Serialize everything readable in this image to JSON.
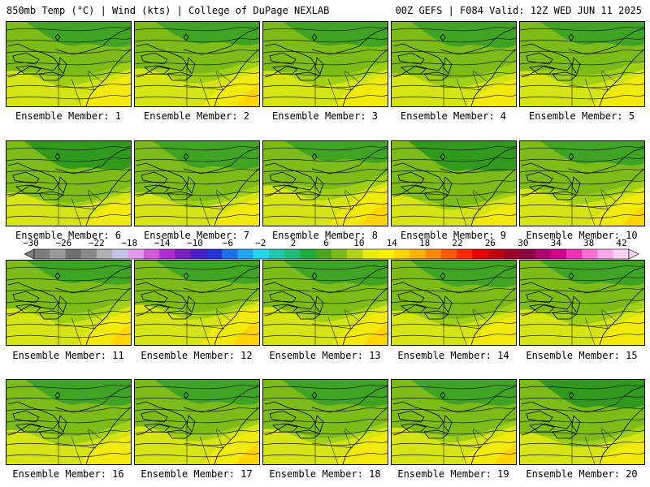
{
  "header": {
    "left": "850mb Temp (°C) | Wind (kts) | College of DuPage NEXLAB",
    "right": "00Z GEFS | F084 Valid: 12Z WED JUN 11 2025"
  },
  "panel_label_prefix": "Ensemble Member:",
  "members": [
    {
      "n": "1",
      "tone": 1.0,
      "warm": 0.3
    },
    {
      "n": "2",
      "tone": 0.8,
      "warm": 0.4
    },
    {
      "n": "3",
      "tone": 1.0,
      "warm": 0.3
    },
    {
      "n": "4",
      "tone": 1.1,
      "warm": 0.2
    },
    {
      "n": "5",
      "tone": 0.9,
      "warm": 0.3
    },
    {
      "n": "6",
      "tone": 1.4,
      "warm": 0.2
    },
    {
      "n": "7",
      "tone": 1.3,
      "warm": 0.2
    },
    {
      "n": "8",
      "tone": 0.6,
      "warm": 0.5
    },
    {
      "n": "9",
      "tone": 1.6,
      "warm": 0.1
    },
    {
      "n": "10",
      "tone": 0.9,
      "warm": 0.35
    },
    {
      "n": "11",
      "tone": 0.9,
      "warm": 0.35
    },
    {
      "n": "12",
      "tone": 0.8,
      "warm": 0.5
    },
    {
      "n": "13",
      "tone": 1.0,
      "warm": 0.4
    },
    {
      "n": "14",
      "tone": 1.2,
      "warm": 0.25
    },
    {
      "n": "15",
      "tone": 1.0,
      "warm": 0.3
    },
    {
      "n": "16",
      "tone": 1.1,
      "warm": 0.25
    },
    {
      "n": "17",
      "tone": 1.0,
      "warm": 0.4
    },
    {
      "n": "18",
      "tone": 1.2,
      "warm": 0.3
    },
    {
      "n": "19",
      "tone": 1.1,
      "warm": 0.35
    },
    {
      "n": "20",
      "tone": 1.4,
      "warm": 0.15
    }
  ],
  "colorbar": {
    "ticks": [
      "−30",
      "−26",
      "−22",
      "−18",
      "−14",
      "−10",
      "−6",
      "−2",
      "2",
      "6",
      "10",
      "14",
      "18",
      "22",
      "26",
      "30",
      "34",
      "38",
      "42"
    ],
    "colors": [
      "#7d7d7d",
      "#9a9a9a",
      "#707070",
      "#8a8a8a",
      "#b0b0b0",
      "#c3c3e8",
      "#e09ae8",
      "#d15ad8",
      "#b22ad3",
      "#7a1fc4",
      "#4a1fc9",
      "#2432d8",
      "#1e6ff0",
      "#1fa4f0",
      "#20d8e8",
      "#1ec8b0",
      "#1ebe78",
      "#1cad3c",
      "#4aa41c",
      "#7dba14",
      "#b2d414",
      "#e6ec14",
      "#fff200",
      "#ffd400",
      "#ffb000",
      "#ff8a00",
      "#ff5a00",
      "#ff2a00",
      "#e60000",
      "#c00010",
      "#a00028",
      "#8a0040",
      "#b4006e",
      "#d2008c",
      "#ee30b4",
      "#ff6ed0",
      "#ffa6e6",
      "#ffd2f2"
    ]
  }
}
